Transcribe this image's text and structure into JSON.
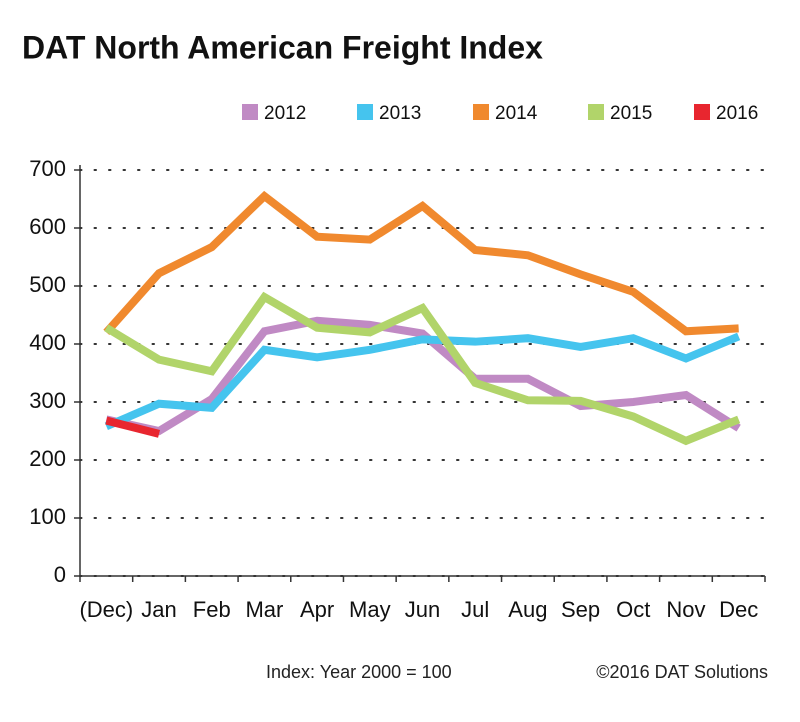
{
  "chart_data": {
    "type": "line",
    "title": "DAT North American Freight Index",
    "categories": [
      "(Dec)",
      "Jan",
      "Feb",
      "Mar",
      "Apr",
      "May",
      "Jun",
      "Jul",
      "Aug",
      "Sep",
      "Oct",
      "Nov",
      "Dec"
    ],
    "series": [
      {
        "name": "2012",
        "color": "#c08ac4",
        "values": [
          270,
          250,
          305,
          422,
          440,
          433,
          418,
          340,
          340,
          293,
          300,
          312,
          255
        ]
      },
      {
        "name": "2013",
        "color": "#45c4ee",
        "values": [
          258,
          297,
          290,
          390,
          377,
          390,
          408,
          404,
          410,
          395,
          410,
          375,
          413
        ]
      },
      {
        "name": "2014",
        "color": "#f0892e",
        "values": [
          420,
          522,
          567,
          655,
          585,
          580,
          638,
          562,
          553,
          520,
          490,
          422,
          427
        ]
      },
      {
        "name": "2015",
        "color": "#b1d46a",
        "values": [
          428,
          373,
          353,
          481,
          428,
          420,
          462,
          333,
          303,
          302,
          275,
          233,
          270
        ]
      },
      {
        "name": "2016",
        "color": "#e8262f",
        "values": [
          268,
          245,
          null,
          null,
          null,
          null,
          null,
          null,
          null,
          null,
          null,
          null,
          null
        ]
      }
    ],
    "ylim": [
      0,
      700
    ],
    "yticks": [
      0,
      100,
      200,
      300,
      400,
      500,
      600,
      700
    ],
    "grid": true,
    "notes": [
      "Index: Year 2000 = 100",
      "©2016 DAT Solutions"
    ]
  }
}
